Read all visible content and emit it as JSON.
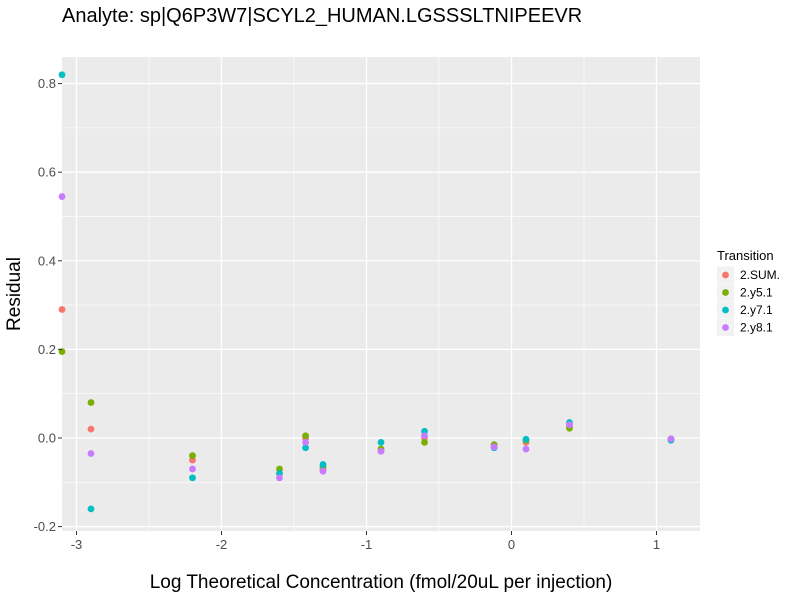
{
  "chart_data": {
    "type": "scatter",
    "title": "Analyte: sp|Q6P3W7|SCYL2_HUMAN.LGSSSLTNIPEEVR",
    "xlabel": "Log Theoretical Concentration (fmol/20uL per injection)",
    "ylabel": "Residual",
    "xlim": [
      -3.1,
      1.3
    ],
    "ylim": [
      -0.21,
      0.86
    ],
    "x_ticks": [
      -3,
      -2,
      -1,
      0,
      1
    ],
    "x_tick_labels": [
      "-3",
      "-2",
      "-1",
      "0",
      "1"
    ],
    "y_ticks": [
      -0.2,
      0.0,
      0.2,
      0.4,
      0.6,
      0.8
    ],
    "y_tick_labels": [
      "-0.2",
      "0.0",
      "0.2",
      "0.4",
      "0.6",
      "0.8"
    ],
    "grid": true,
    "legend": {
      "title": "Transition",
      "position": "right",
      "items": [
        {
          "label": "2.SUM.",
          "color": "#F8766D"
        },
        {
          "label": "2.y5.1",
          "color": "#7CAE00"
        },
        {
          "label": "2.y7.1",
          "color": "#00BFC4"
        },
        {
          "label": "2.y8.1",
          "color": "#C77CFF"
        }
      ]
    },
    "series": [
      {
        "name": "2.SUM.",
        "color": "#F8766D",
        "points": [
          [
            -3.1,
            0.29
          ],
          [
            -2.9,
            0.02
          ],
          [
            -2.2,
            -0.05
          ],
          [
            -1.6,
            -0.08
          ],
          [
            -1.42,
            0.0
          ],
          [
            -1.3,
            -0.07
          ],
          [
            -0.9,
            -0.03
          ],
          [
            -0.6,
            0.0
          ],
          [
            -0.12,
            -0.02
          ],
          [
            0.1,
            -0.01
          ],
          [
            0.4,
            0.025
          ],
          [
            1.1,
            -0.003
          ]
        ]
      },
      {
        "name": "2.y5.1",
        "color": "#7CAE00",
        "points": [
          [
            -3.1,
            0.195
          ],
          [
            -2.9,
            0.08
          ],
          [
            -2.2,
            -0.04
          ],
          [
            -1.6,
            -0.07
          ],
          [
            -1.42,
            0.005
          ],
          [
            -1.3,
            -0.065
          ],
          [
            -0.9,
            -0.025
          ],
          [
            -0.6,
            -0.01
          ],
          [
            -0.12,
            -0.015
          ],
          [
            0.1,
            -0.005
          ],
          [
            0.4,
            0.022
          ],
          [
            1.1,
            -0.002
          ]
        ]
      },
      {
        "name": "2.y7.1",
        "color": "#00BFC4",
        "points": [
          [
            -3.1,
            0.82
          ],
          [
            -2.9,
            -0.16
          ],
          [
            -2.2,
            -0.09
          ],
          [
            -1.6,
            -0.08
          ],
          [
            -1.42,
            -0.022
          ],
          [
            -1.3,
            -0.06
          ],
          [
            -0.9,
            -0.01
          ],
          [
            -0.6,
            0.015
          ],
          [
            -0.12,
            -0.022
          ],
          [
            0.1,
            -0.003
          ],
          [
            0.4,
            0.035
          ],
          [
            1.1,
            -0.005
          ]
        ]
      },
      {
        "name": "2.y8.1",
        "color": "#C77CFF",
        "points": [
          [
            -3.1,
            0.545
          ],
          [
            -2.9,
            -0.035
          ],
          [
            -2.2,
            -0.07
          ],
          [
            -1.6,
            -0.09
          ],
          [
            -1.42,
            -0.01
          ],
          [
            -1.3,
            -0.075
          ],
          [
            -0.9,
            -0.03
          ],
          [
            -0.6,
            0.005
          ],
          [
            -0.12,
            -0.02
          ],
          [
            0.1,
            -0.025
          ],
          [
            0.4,
            0.03
          ],
          [
            1.1,
            -0.002
          ]
        ]
      }
    ]
  }
}
